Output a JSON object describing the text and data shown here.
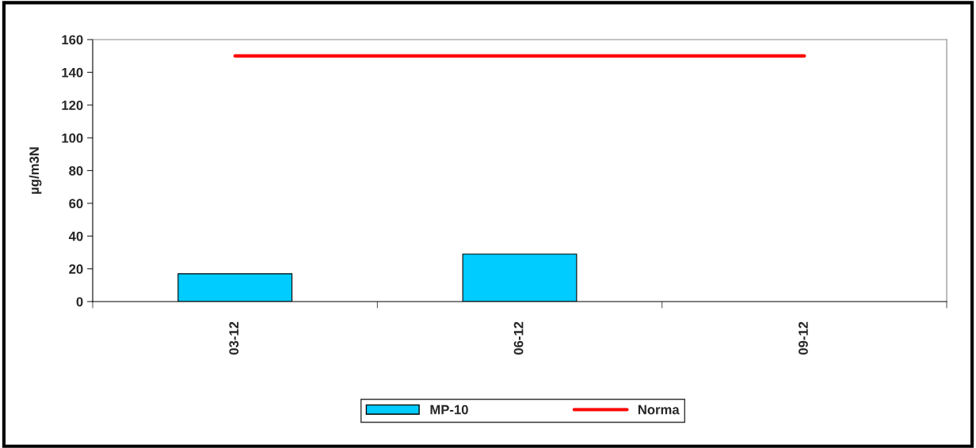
{
  "chart_data": {
    "type": "bar",
    "ylabel": "µg/m3N",
    "categories": [
      "03-12",
      "06-12",
      "09-12"
    ],
    "series": [
      {
        "name": "MP-10",
        "color": "#00ccff",
        "values": [
          17,
          29,
          null
        ]
      },
      {
        "name": "Norma",
        "type": "line",
        "color": "#ff0000",
        "values": [
          150,
          150,
          150
        ]
      }
    ],
    "ylim": [
      0,
      160
    ],
    "yticks": [
      0,
      20,
      40,
      60,
      80,
      100,
      120,
      140,
      160
    ],
    "grid": false,
    "legend": "bottom",
    "marker": "none",
    "line_style": "solid"
  }
}
